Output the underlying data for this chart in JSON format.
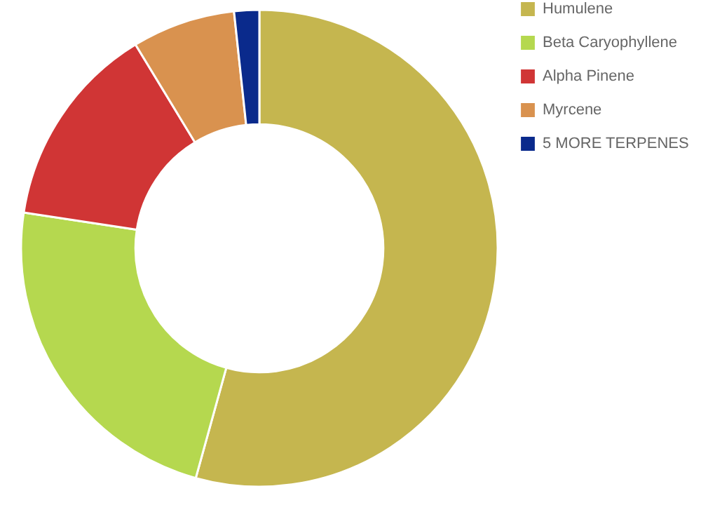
{
  "chart_data": {
    "type": "donut",
    "categories": [
      "Humulene",
      "Beta Caryophyllene",
      "Alpha Pinene",
      "Myrcene",
      "5 MORE TERPENES"
    ],
    "values": [
      54.3,
      23.1,
      13.9,
      7.0,
      1.7
    ],
    "colors": [
      "#c5b64f",
      "#b5d84f",
      "#d03535",
      "#d9924f",
      "#0a2a8c"
    ],
    "legend": "right"
  }
}
